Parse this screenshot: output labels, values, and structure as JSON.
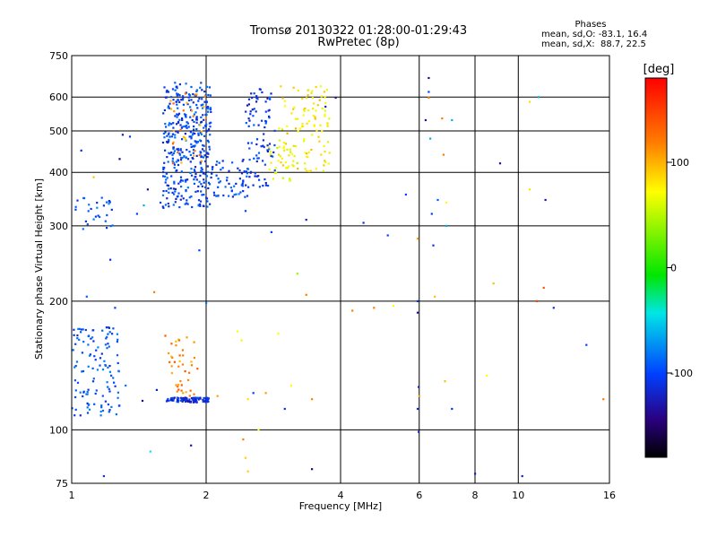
{
  "header": {
    "title_line1": "Tromsø 20130322 01:28:00-01:29:43",
    "title_line2": "RwPretec (8p)"
  },
  "phase_stats": {
    "heading": "Phases",
    "line_o": "mean, sd,O: -83.1, 16.4",
    "line_x": "mean, sd,X:  88.7, 22.5"
  },
  "colorbar": {
    "label": "[deg]",
    "ticks": [
      "100",
      "0",
      "-100"
    ],
    "tick_values": [
      100,
      0,
      -100
    ],
    "range": [
      -180,
      180
    ]
  },
  "chart_data": {
    "type": "scatter",
    "title": "Tromsø 20130322 01:28:00-01:29:43",
    "subtitle": "RwPretec (8p)",
    "xlabel": "Frequency [MHz]",
    "ylabel": "Stationary phase Virtual Height [km]",
    "x_scale": "log",
    "y_scale": "log",
    "xlim": [
      1,
      16
    ],
    "ylim": [
      75,
      750
    ],
    "x_ticks": [
      "1",
      "2",
      "4",
      "6",
      "8",
      "10",
      "16"
    ],
    "x_tick_values": [
      1,
      2,
      4,
      6,
      8,
      10,
      16
    ],
    "y_ticks": [
      "75",
      "100",
      "200",
      "300",
      "400",
      "500",
      "600",
      "750"
    ],
    "y_tick_values": [
      75,
      100,
      200,
      300,
      400,
      500,
      600,
      750
    ],
    "grid": true,
    "color_variable": "Phase [deg]",
    "clusters": [
      {
        "x_range": [
          1.6,
          2.05
        ],
        "y_range": [
          330,
          650
        ],
        "phase": -100,
        "count": 380
      },
      {
        "x_range": [
          2.05,
          2.5
        ],
        "y_range": [
          350,
          430
        ],
        "phase": -100,
        "count": 60
      },
      {
        "x_range": [
          2.45,
          2.85
        ],
        "y_range": [
          370,
          630
        ],
        "phase": -105,
        "count": 90
      },
      {
        "x_range": [
          1.65,
          2.0
        ],
        "y_range": [
          420,
          620
        ],
        "phase": 115,
        "count": 30
      },
      {
        "x_range": [
          2.9,
          3.8
        ],
        "y_range": [
          400,
          640
        ],
        "phase": 85,
        "count": 110
      },
      {
        "x_range": [
          2.75,
          3.2
        ],
        "y_range": [
          380,
          460
        ],
        "phase": 75,
        "count": 25
      },
      {
        "x_range": [
          1.0,
          1.28
        ],
        "y_range": [
          108,
          175
        ],
        "phase": -95,
        "count": 120
      },
      {
        "x_range": [
          1.0,
          1.25
        ],
        "y_range": [
          290,
          350
        ],
        "phase": -90,
        "count": 30
      },
      {
        "x_range": [
          1.63,
          2.03
        ],
        "y_range": [
          116,
          119
        ],
        "phase": -110,
        "count": 100
      },
      {
        "x_range": [
          1.63,
          1.92
        ],
        "y_range": [
          120,
          165
        ],
        "phase": 120,
        "count": 40
      }
    ],
    "points": [
      {
        "x": 1.05,
        "y": 450,
        "phase": -110
      },
      {
        "x": 1.12,
        "y": 390,
        "phase": 100
      },
      {
        "x": 1.3,
        "y": 490,
        "phase": -120
      },
      {
        "x": 1.35,
        "y": 485,
        "phase": -105
      },
      {
        "x": 1.28,
        "y": 430,
        "phase": -140
      },
      {
        "x": 1.4,
        "y": 320,
        "phase": -100
      },
      {
        "x": 1.45,
        "y": 335,
        "phase": -60
      },
      {
        "x": 1.58,
        "y": 340,
        "phase": -100
      },
      {
        "x": 1.48,
        "y": 365,
        "phase": -130
      },
      {
        "x": 1.22,
        "y": 250,
        "phase": -110
      },
      {
        "x": 1.08,
        "y": 205,
        "phase": -90
      },
      {
        "x": 1.25,
        "y": 193,
        "phase": -100
      },
      {
        "x": 1.32,
        "y": 127,
        "phase": -80
      },
      {
        "x": 1.44,
        "y": 117,
        "phase": -140
      },
      {
        "x": 1.55,
        "y": 124,
        "phase": -120
      },
      {
        "x": 1.62,
        "y": 166,
        "phase": 140
      },
      {
        "x": 1.53,
        "y": 210,
        "phase": 120
      },
      {
        "x": 1.18,
        "y": 78,
        "phase": -110
      },
      {
        "x": 1.5,
        "y": 89,
        "phase": -40
      },
      {
        "x": 1.85,
        "y": 92,
        "phase": -130
      },
      {
        "x": 1.93,
        "y": 263,
        "phase": -100
      },
      {
        "x": 2.0,
        "y": 198,
        "phase": -80
      },
      {
        "x": 2.12,
        "y": 120,
        "phase": 110
      },
      {
        "x": 2.35,
        "y": 170,
        "phase": 80
      },
      {
        "x": 2.4,
        "y": 162,
        "phase": 85
      },
      {
        "x": 2.45,
        "y": 325,
        "phase": -100
      },
      {
        "x": 2.55,
        "y": 122,
        "phase": -100
      },
      {
        "x": 2.48,
        "y": 118,
        "phase": 90
      },
      {
        "x": 2.42,
        "y": 95,
        "phase": 120
      },
      {
        "x": 2.45,
        "y": 86,
        "phase": 95
      },
      {
        "x": 2.48,
        "y": 80,
        "phase": 95
      },
      {
        "x": 2.62,
        "y": 100,
        "phase": 80
      },
      {
        "x": 2.72,
        "y": 122,
        "phase": 110
      },
      {
        "x": 2.8,
        "y": 290,
        "phase": -100
      },
      {
        "x": 2.9,
        "y": 168,
        "phase": 80
      },
      {
        "x": 3.1,
        "y": 127,
        "phase": 80
      },
      {
        "x": 3.0,
        "y": 112,
        "phase": -110
      },
      {
        "x": 3.2,
        "y": 232,
        "phase": 50
      },
      {
        "x": 3.35,
        "y": 207,
        "phase": 120
      },
      {
        "x": 3.45,
        "y": 118,
        "phase": 120
      },
      {
        "x": 3.35,
        "y": 310,
        "phase": -120
      },
      {
        "x": 3.45,
        "y": 81,
        "phase": -140
      },
      {
        "x": 3.7,
        "y": 570,
        "phase": -120
      },
      {
        "x": 3.9,
        "y": 598,
        "phase": -130
      },
      {
        "x": 4.25,
        "y": 190,
        "phase": 120
      },
      {
        "x": 4.5,
        "y": 305,
        "phase": -110
      },
      {
        "x": 4.75,
        "y": 193,
        "phase": 120
      },
      {
        "x": 5.1,
        "y": 285,
        "phase": -100
      },
      {
        "x": 5.25,
        "y": 195,
        "phase": 80
      },
      {
        "x": 5.6,
        "y": 355,
        "phase": -100
      },
      {
        "x": 5.95,
        "y": 280,
        "phase": 110
      },
      {
        "x": 5.95,
        "y": 200,
        "phase": -110
      },
      {
        "x": 5.95,
        "y": 188,
        "phase": -130
      },
      {
        "x": 5.98,
        "y": 126,
        "phase": -120
      },
      {
        "x": 5.95,
        "y": 112,
        "phase": -110
      },
      {
        "x": 5.98,
        "y": 99,
        "phase": -120
      },
      {
        "x": 6.0,
        "y": 120,
        "phase": 110
      },
      {
        "x": 6.2,
        "y": 530,
        "phase": -130
      },
      {
        "x": 6.3,
        "y": 665,
        "phase": -140
      },
      {
        "x": 6.3,
        "y": 617,
        "phase": -100
      },
      {
        "x": 6.3,
        "y": 598,
        "phase": 120
      },
      {
        "x": 6.35,
        "y": 480,
        "phase": -60
      },
      {
        "x": 6.4,
        "y": 320,
        "phase": -100
      },
      {
        "x": 6.45,
        "y": 270,
        "phase": -110
      },
      {
        "x": 6.5,
        "y": 205,
        "phase": 100
      },
      {
        "x": 6.6,
        "y": 345,
        "phase": -90
      },
      {
        "x": 6.8,
        "y": 440,
        "phase": 120
      },
      {
        "x": 6.9,
        "y": 340,
        "phase": 80
      },
      {
        "x": 6.9,
        "y": 300,
        "phase": -60
      },
      {
        "x": 6.85,
        "y": 130,
        "phase": 100
      },
      {
        "x": 6.75,
        "y": 535,
        "phase": 120
      },
      {
        "x": 7.1,
        "y": 530,
        "phase": -60
      },
      {
        "x": 7.1,
        "y": 112,
        "phase": -110
      },
      {
        "x": 8.0,
        "y": 79,
        "phase": -120
      },
      {
        "x": 8.5,
        "y": 134,
        "phase": 80
      },
      {
        "x": 8.8,
        "y": 220,
        "phase": 100
      },
      {
        "x": 9.1,
        "y": 420,
        "phase": -130
      },
      {
        "x": 10.2,
        "y": 78,
        "phase": -120
      },
      {
        "x": 10.6,
        "y": 585,
        "phase": 90
      },
      {
        "x": 10.6,
        "y": 365,
        "phase": 90
      },
      {
        "x": 11.1,
        "y": 600,
        "phase": -60
      },
      {
        "x": 11.0,
        "y": 200,
        "phase": 150
      },
      {
        "x": 11.4,
        "y": 215,
        "phase": 140
      },
      {
        "x": 11.5,
        "y": 345,
        "phase": -130
      },
      {
        "x": 12.0,
        "y": 193,
        "phase": -110
      },
      {
        "x": 14.2,
        "y": 158,
        "phase": -100
      },
      {
        "x": 15.5,
        "y": 118,
        "phase": 120
      }
    ]
  }
}
